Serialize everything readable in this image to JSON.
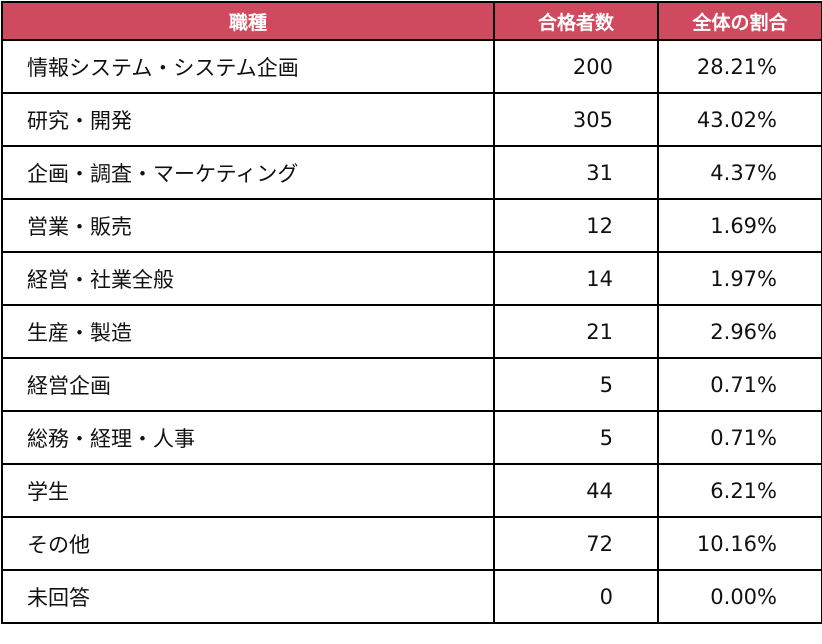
{
  "colors": {
    "header_bg": "#cf4a5e",
    "header_text": "#ffffff",
    "border": "#000000"
  },
  "table": {
    "headers": [
      "職種",
      "合格者数",
      "全体の割合"
    ],
    "rows": [
      {
        "job": "情報システム・システム企画",
        "count": "200",
        "share": "28.21%"
      },
      {
        "job": "研究・開発",
        "count": "305",
        "share": "43.02%"
      },
      {
        "job": "企画・調査・マーケティング",
        "count": "31",
        "share": "4.37%"
      },
      {
        "job": "営業・販売",
        "count": "12",
        "share": "1.69%"
      },
      {
        "job": "経営・社業全般",
        "count": "14",
        "share": "1.97%"
      },
      {
        "job": "生産・製造",
        "count": "21",
        "share": "2.96%"
      },
      {
        "job": "経営企画",
        "count": "5",
        "share": "0.71%"
      },
      {
        "job": "総務・経理・人事",
        "count": "5",
        "share": "0.71%"
      },
      {
        "job": "学生",
        "count": "44",
        "share": "6.21%"
      },
      {
        "job": "その他",
        "count": "72",
        "share": "10.16%"
      },
      {
        "job": "未回答",
        "count": "0",
        "share": "0.00%"
      }
    ]
  }
}
